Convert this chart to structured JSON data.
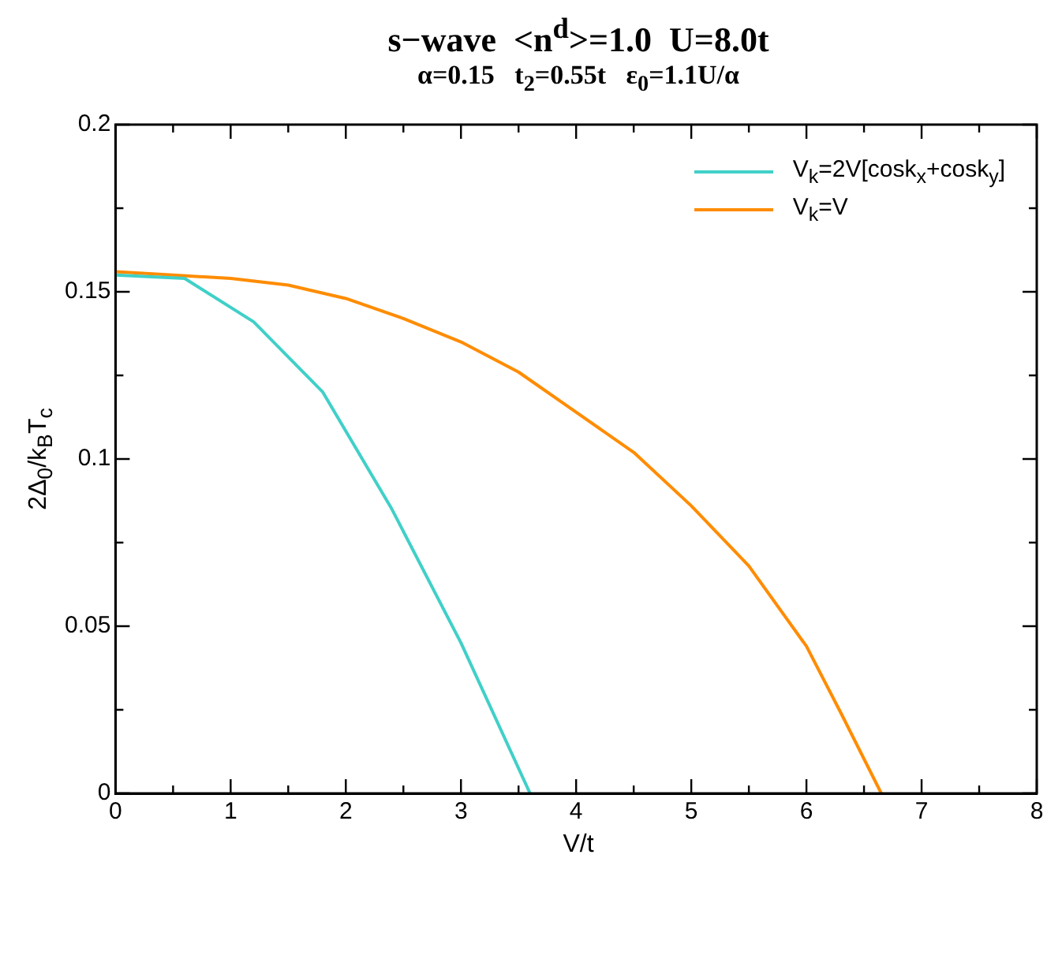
{
  "chart_data": {
    "type": "line",
    "title": "s−wave  <n$^{d}$>=1.0  U=8.0t",
    "subtitle": "α=0.15   t$_{2}$=0.55t   ε$_{0}$=1.1U/α",
    "xlabel": "V/t",
    "ylabel": "2Δ$_{0}$/k$_{B}$T$_{c}$",
    "xlim": [
      0,
      8
    ],
    "xticks": [
      0,
      {
        "value": 0.5,
        "label": null
      },
      1,
      {
        "value": 1.5,
        "label": null
      },
      2,
      {
        "value": 2.5,
        "label": null
      },
      3,
      {
        "value": 3.5,
        "label": null
      },
      4,
      {
        "value": 4.5,
        "label": null
      },
      5,
      {
        "value": 5.5,
        "label": null
      },
      6,
      {
        "value": 6.5,
        "label": null
      },
      7,
      {
        "value": 7.5,
        "label": null
      },
      8
    ],
    "ylim": [
      0,
      0.2
    ],
    "yticks": [
      0,
      {
        "value": 0.025,
        "label": null
      },
      0.05,
      {
        "value": 0.075,
        "label": null
      },
      0.1,
      {
        "value": 0.125,
        "label": null
      },
      0.15,
      {
        "value": 0.175,
        "label": null
      },
      0.2
    ],
    "grid": false,
    "legend": "top right",
    "marker": "none",
    "line_style": "solid",
    "series": [
      {
        "name": "V$_{k}$=2V[cosk$_{x}$+cosk$_{y}$]",
        "color": "#40d0c8",
        "x": [
          0,
          0.6,
          1.2,
          1.8,
          2.4,
          3.0,
          3.6
        ],
        "values": [
          0.155,
          0.154,
          0.141,
          0.12,
          0.085,
          0.045,
          0
        ]
      },
      {
        "name": "V$_{k}$=V",
        "color": "#ff8c00",
        "x": [
          0,
          0.5,
          1.0,
          1.5,
          2.0,
          2.5,
          3.0,
          3.5,
          4.0,
          4.5,
          5.0,
          5.5,
          6.0,
          6.3,
          6.65
        ],
        "values": [
          0.156,
          0.155,
          0.154,
          0.152,
          0.148,
          0.142,
          0.135,
          0.126,
          0.114,
          0.102,
          0.086,
          0.068,
          0.044,
          0.024,
          0
        ]
      }
    ]
  }
}
